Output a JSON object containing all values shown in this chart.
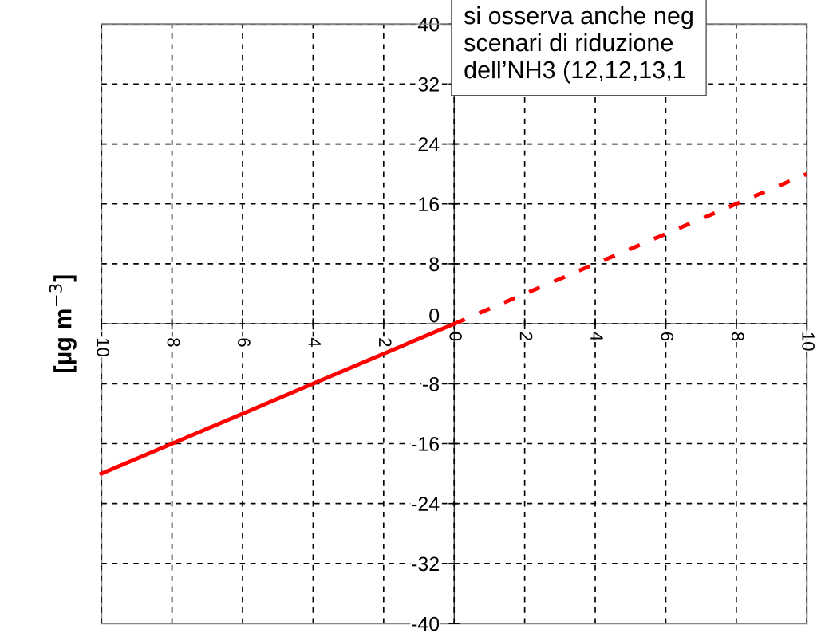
{
  "chart_data": {
    "type": "line",
    "ylabel": "[µg m$^{−3}$]",
    "annotations": [
      "si osserva anche neg\nscenari di riduzione\ndell’NH3 (12,12,13,1"
    ],
    "series": [
      {
        "color": "#ff0000",
        "x": [
          -10,
          -8,
          -6,
          -4,
          -2,
          0
        ],
        "values": [
          -20,
          -16,
          -12,
          -8,
          -4,
          0
        ],
        "line_style": "solid"
      },
      {
        "color": "#ff0000",
        "x": [
          0,
          2,
          4,
          6,
          8,
          10
        ],
        "values": [
          0,
          4,
          8,
          12,
          16,
          20
        ],
        "line_style": "dashed"
      }
    ],
    "xlim": [
      -10,
      10
    ],
    "xticks": [
      -10,
      -8,
      -6,
      -4,
      -2,
      0,
      2,
      4,
      6,
      8,
      10
    ],
    "ylim": [
      -40,
      40
    ],
    "yticks": [
      -40,
      -32,
      -24,
      -16,
      -8,
      0,
      8,
      16,
      24,
      32,
      40
    ],
    "grid": true,
    "marker": "none"
  }
}
